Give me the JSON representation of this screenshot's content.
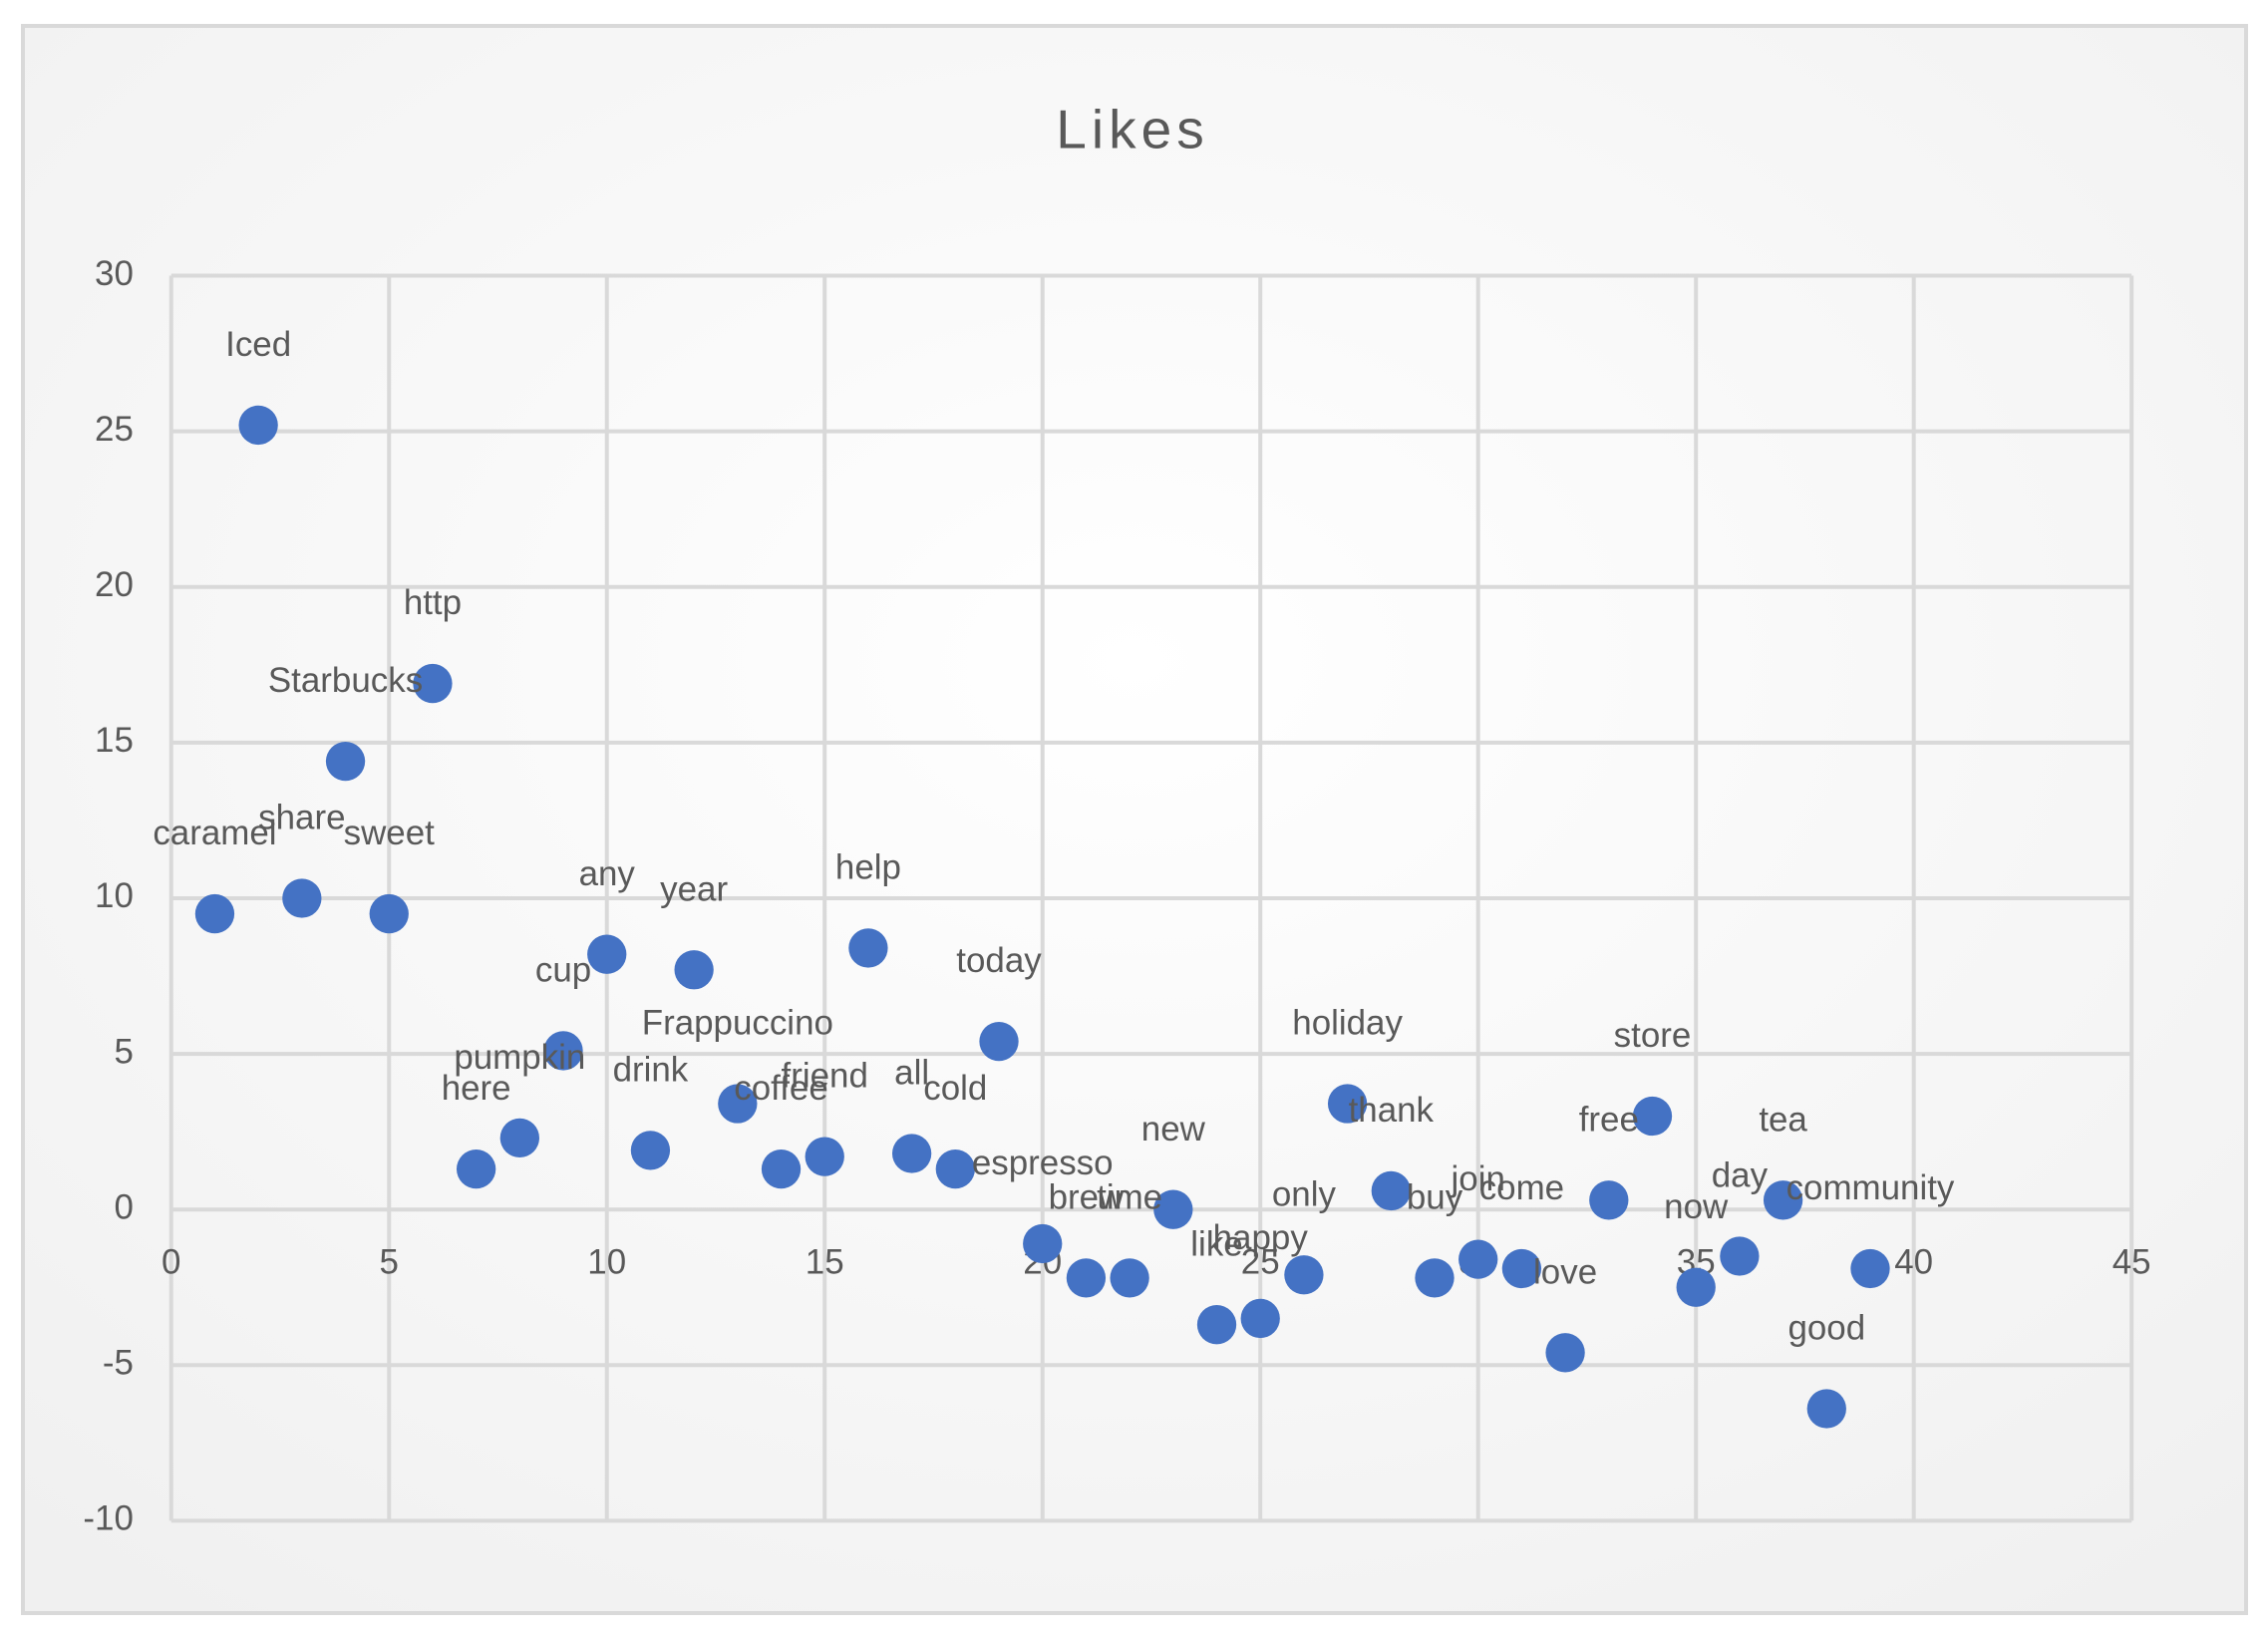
{
  "chart_data": {
    "type": "scatter",
    "title": "Likes",
    "x": [
      1,
      2,
      3,
      4,
      5,
      6,
      7,
      8,
      9,
      10,
      11,
      12,
      13,
      14,
      15,
      16,
      17,
      18,
      19,
      20,
      21,
      22,
      23,
      24,
      25,
      26,
      27,
      28,
      29,
      30,
      31,
      32,
      33,
      34,
      35,
      36,
      37,
      38,
      39
    ],
    "values": [
      9.5,
      25.2,
      10,
      14.4,
      9.5,
      16.9,
      1.3,
      2.3,
      5.1,
      8.2,
      1.9,
      7.7,
      3.4,
      1.3,
      1.7,
      8.4,
      1.8,
      1.3,
      5.4,
      -1.1,
      -2.2,
      -2.2,
      0,
      -3.7,
      -3.5,
      -2.1,
      3.4,
      0.6,
      -2.2,
      -1.6,
      -1.9,
      -4.6,
      0.3,
      3,
      -2.5,
      -1.5,
      0.3,
      -6.4,
      -1.9
    ],
    "point_labels": [
      "caramel",
      "Iced",
      "share",
      "Starbucks",
      "sweet",
      "http",
      "here",
      "pumpkin",
      "cup",
      "any",
      "drink",
      "year",
      "Frappuccino",
      "coffee",
      "friend",
      "help",
      "all",
      "cold",
      "today",
      "espresso",
      "brew",
      "time",
      "new",
      "like",
      "happy",
      "only",
      "holiday",
      "thank",
      "buy",
      "join",
      "come",
      "love",
      "free",
      "store",
      "now",
      "day",
      "tea",
      "good",
      "community"
    ],
    "color": "#4472c4",
    "xlim": [
      0,
      45
    ],
    "xticks": [
      0,
      5,
      10,
      15,
      20,
      25,
      30,
      35,
      40,
      45
    ],
    "ylim": [
      -10,
      30
    ],
    "yticks": [
      -10,
      -5,
      0,
      5,
      10,
      15,
      20,
      25,
      30
    ],
    "grid": true
  }
}
